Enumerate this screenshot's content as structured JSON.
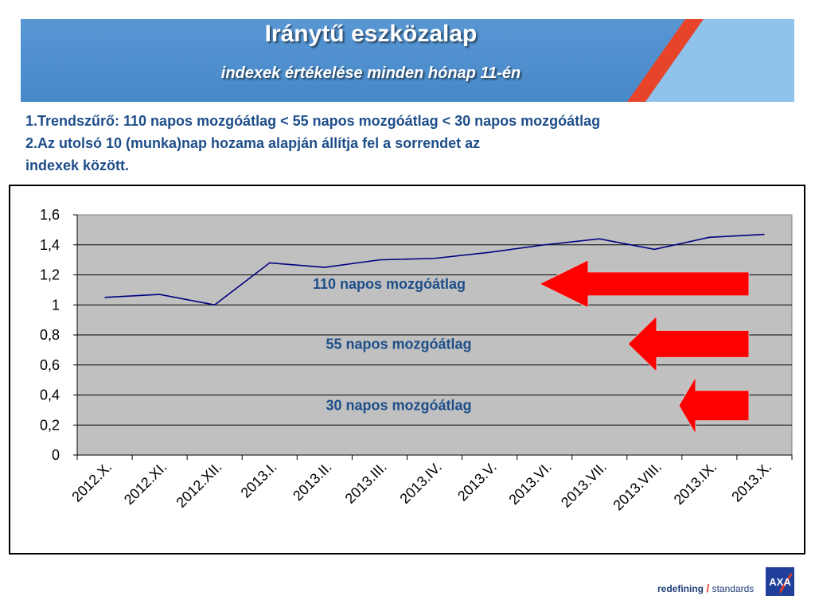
{
  "header": {
    "title": "Iránytű eszközalap",
    "subtitle": "indexek értékelése minden hónap 11-én"
  },
  "description": {
    "line1": "1.Trendszűrő:  110 napos mozgóátlag < 55 napos mozgóátlag < 30 napos mozgóátlag",
    "line2": "2.Az utolsó 10 (munka)nap hozama alapján állítja fel a sorrendet az",
    "line3": "indexek között."
  },
  "footer": {
    "brand_word1": "redefining",
    "brand_slash": "/",
    "brand_word2": "standards",
    "logo_text": "AXA"
  },
  "colors": {
    "banner": "#4a8ed0",
    "accent_stripe": "#e8442a",
    "text_blue": "#1e4e8a",
    "plot_bg": "#c0c0c0",
    "line": "#000080",
    "arrow": "#ff0000"
  },
  "chart_data": {
    "type": "line",
    "categories": [
      "2012.X.",
      "2012.XI.",
      "2012.XII.",
      "2013.I.",
      "2013.II.",
      "2013.III.",
      "2013.IV.",
      "2013.V.",
      "2013.VI.",
      "2013.VII.",
      "2013.VIII.",
      "2013.IX.",
      "2013.X."
    ],
    "series": [
      {
        "values": [
          1.05,
          1.07,
          1.0,
          1.28,
          1.25,
          1.3,
          1.31,
          1.35,
          1.4,
          1.44,
          1.37,
          1.45,
          1.47
        ]
      }
    ],
    "ylim": [
      0,
      1.6
    ],
    "yticks": [
      "0",
      "0,2",
      "0,4",
      "0,6",
      "0,8",
      "1",
      "1,2",
      "1,4",
      "1,6"
    ],
    "grid": true,
    "annotations": [
      {
        "text": "110 napos mozgóátlag",
        "y": 1.14
      },
      {
        "text": "55 napos mozgóátlag",
        "y": 0.74
      },
      {
        "text": "30 napos mozgóátlag",
        "y": 0.33
      }
    ]
  }
}
